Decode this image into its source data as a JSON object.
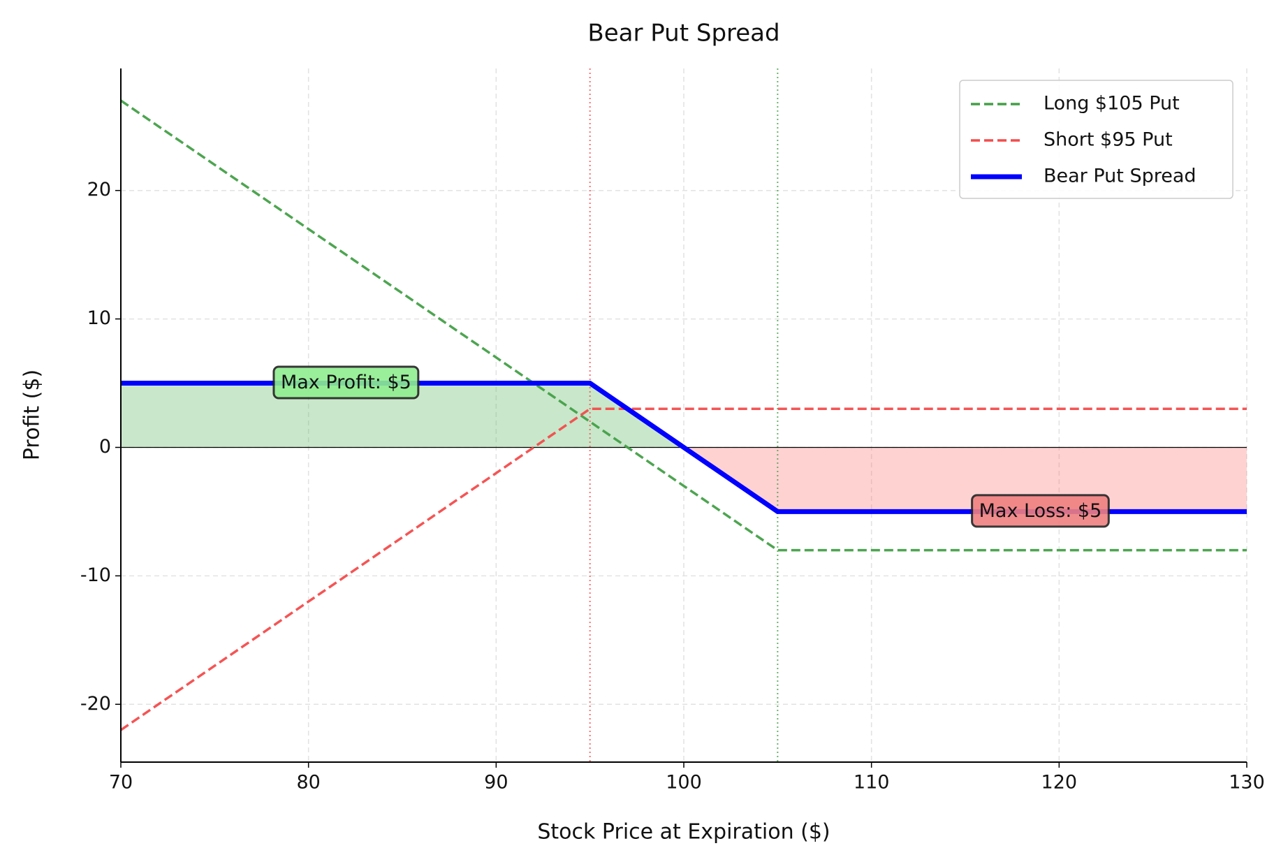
{
  "chart_data": {
    "type": "line",
    "title": "Bear Put Spread",
    "x_label": "Stock Price at Expiration ($)",
    "y_label": "Profit ($)",
    "x": [
      70,
      95,
      100,
      105,
      130
    ],
    "series": [
      {
        "name": "Long $105 Put",
        "color": "#43a047",
        "style": "dashed",
        "values": [
          27,
          2,
          -3,
          -8,
          -8
        ]
      },
      {
        "name": "Short $95 Put",
        "color": "#f44b4b",
        "style": "dashed",
        "values": [
          -22,
          3,
          3,
          3,
          3
        ]
      },
      {
        "name": "Bear Put Spread",
        "color": "#0000ff",
        "style": "solid",
        "values": [
          5,
          5,
          0,
          -5,
          -5
        ]
      }
    ],
    "profit_fill_color": "#4caf50",
    "loss_fill_color": "#ff6b6b",
    "vlines": [
      {
        "x": 95,
        "color": "#f44b4b"
      },
      {
        "x": 105,
        "color": "#43a047"
      }
    ],
    "annotations": [
      {
        "text": "Max Profit: $5",
        "x": 82,
        "y": 5,
        "color": "#90ee90"
      },
      {
        "text": "Max Loss: $5",
        "x": 119,
        "y": -5,
        "color": "#f08080"
      }
    ],
    "xlim": [
      70,
      130
    ],
    "xticks": [
      70,
      80,
      90,
      100,
      110,
      120,
      130
    ],
    "ylim": [
      -24.5,
      29.5
    ],
    "yticks": [
      -20,
      -10,
      0,
      10,
      20
    ],
    "grid": true,
    "legend": "upper right"
  }
}
